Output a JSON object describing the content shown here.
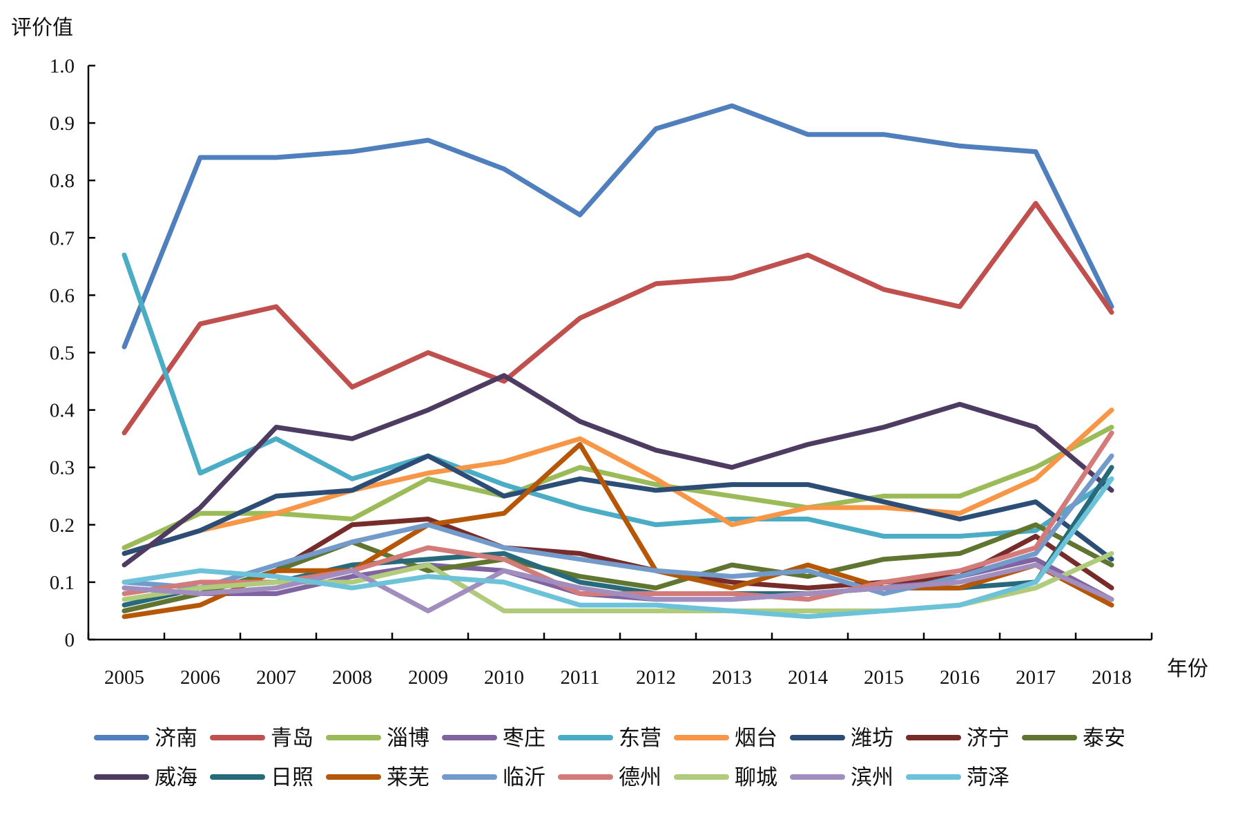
{
  "chart_data": {
    "type": "line",
    "title": "",
    "xlabel": "年份",
    "ylabel": "评价值",
    "x": [
      "2005",
      "2006",
      "2007",
      "2008",
      "2009",
      "2010",
      "2011",
      "2012",
      "2013",
      "2014",
      "2015",
      "2016",
      "2017",
      "2018"
    ],
    "ylim": [
      0,
      1.0
    ],
    "yticks": [
      "0",
      "0.1",
      "0.2",
      "0.3",
      "0.4",
      "0.5",
      "0.6",
      "0.7",
      "0.8",
      "0.9",
      "1.0"
    ],
    "ytick_values": [
      0,
      0.1,
      0.2,
      0.3,
      0.4,
      0.5,
      0.6,
      0.7,
      0.8,
      0.9,
      1.0
    ],
    "legend_position": "bottom",
    "grid": false,
    "series": [
      {
        "name": "济南",
        "color": "#4F7FBD",
        "values": [
          0.51,
          0.84,
          0.84,
          0.85,
          0.87,
          0.82,
          0.74,
          0.89,
          0.93,
          0.88,
          0.88,
          0.86,
          0.85,
          0.58
        ]
      },
      {
        "name": "青岛",
        "color": "#C0504D",
        "values": [
          0.36,
          0.55,
          0.58,
          0.44,
          0.5,
          0.45,
          0.56,
          0.62,
          0.63,
          0.67,
          0.61,
          0.58,
          0.76,
          0.57
        ]
      },
      {
        "name": "淄博",
        "color": "#9BBB59",
        "values": [
          0.16,
          0.22,
          0.22,
          0.21,
          0.28,
          0.25,
          0.3,
          0.27,
          0.25,
          0.23,
          0.25,
          0.25,
          0.3,
          0.37
        ]
      },
      {
        "name": "枣庄",
        "color": "#8064A2",
        "values": [
          0.09,
          0.08,
          0.08,
          0.11,
          0.13,
          0.12,
          0.08,
          0.07,
          0.07,
          0.08,
          0.09,
          0.11,
          0.14,
          0.07
        ]
      },
      {
        "name": "东营",
        "color": "#4BACC6",
        "values": [
          0.67,
          0.29,
          0.35,
          0.28,
          0.32,
          0.27,
          0.23,
          0.2,
          0.21,
          0.21,
          0.18,
          0.18,
          0.19,
          0.28
        ]
      },
      {
        "name": "烟台",
        "color": "#F79646",
        "values": [
          0.15,
          0.19,
          0.22,
          0.26,
          0.29,
          0.31,
          0.35,
          0.28,
          0.2,
          0.23,
          0.23,
          0.22,
          0.28,
          0.4
        ]
      },
      {
        "name": "潍坊",
        "color": "#2C4D75",
        "values": [
          0.15,
          0.19,
          0.25,
          0.26,
          0.32,
          0.25,
          0.28,
          0.26,
          0.27,
          0.27,
          0.24,
          0.21,
          0.24,
          0.14
        ]
      },
      {
        "name": "济宁",
        "color": "#772C2A",
        "values": [
          0.05,
          0.08,
          0.12,
          0.2,
          0.21,
          0.16,
          0.15,
          0.12,
          0.1,
          0.09,
          0.1,
          0.11,
          0.18,
          0.09
        ]
      },
      {
        "name": "泰安",
        "color": "#5F7530",
        "values": [
          0.05,
          0.08,
          0.12,
          0.17,
          0.12,
          0.14,
          0.11,
          0.09,
          0.13,
          0.11,
          0.14,
          0.15,
          0.2,
          0.13
        ]
      },
      {
        "name": "威海",
        "color": "#4D3B62",
        "values": [
          0.13,
          0.23,
          0.37,
          0.35,
          0.4,
          0.46,
          0.38,
          0.33,
          0.3,
          0.34,
          0.37,
          0.41,
          0.37,
          0.26
        ]
      },
      {
        "name": "日照",
        "color": "#276A7C",
        "values": [
          0.06,
          0.09,
          0.1,
          0.13,
          0.14,
          0.15,
          0.1,
          0.08,
          0.08,
          0.08,
          0.09,
          0.09,
          0.1,
          0.3
        ]
      },
      {
        "name": "莱芜",
        "color": "#B65708",
        "values": [
          0.04,
          0.06,
          0.12,
          0.12,
          0.2,
          0.22,
          0.34,
          0.12,
          0.09,
          0.13,
          0.09,
          0.09,
          0.13,
          0.06
        ]
      },
      {
        "name": "临沂",
        "color": "#729ACA",
        "values": [
          0.1,
          0.09,
          0.13,
          0.17,
          0.2,
          0.16,
          0.14,
          0.12,
          0.11,
          0.12,
          0.08,
          0.11,
          0.15,
          0.32
        ]
      },
      {
        "name": "德州",
        "color": "#D27B79",
        "values": [
          0.08,
          0.1,
          0.1,
          0.12,
          0.16,
          0.14,
          0.08,
          0.08,
          0.08,
          0.07,
          0.1,
          0.12,
          0.16,
          0.36
        ]
      },
      {
        "name": "聊城",
        "color": "#AFCB7B",
        "values": [
          0.07,
          0.09,
          0.1,
          0.1,
          0.13,
          0.05,
          0.05,
          0.05,
          0.05,
          0.05,
          0.05,
          0.06,
          0.09,
          0.15
        ]
      },
      {
        "name": "滨州",
        "color": "#A28DBF",
        "values": [
          0.09,
          0.08,
          0.09,
          0.12,
          0.05,
          0.12,
          0.09,
          0.07,
          0.07,
          0.08,
          0.09,
          0.1,
          0.13,
          0.07
        ]
      },
      {
        "name": "菏泽",
        "color": "#6CC2D8",
        "values": [
          0.1,
          0.12,
          0.11,
          0.09,
          0.11,
          0.1,
          0.06,
          0.06,
          0.05,
          0.04,
          0.05,
          0.06,
          0.1,
          0.28
        ]
      }
    ]
  }
}
